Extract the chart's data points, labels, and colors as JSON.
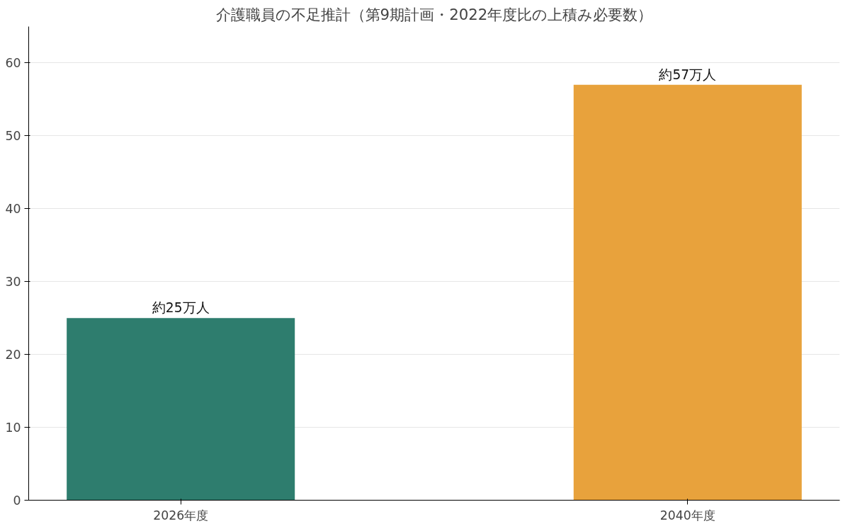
{
  "chart_data": {
    "type": "bar",
    "title": "介護職員の不足推計（第9期計画・2022年度比の上積み必要数）",
    "categories": [
      "2026年度",
      "2040年度"
    ],
    "values": [
      25,
      57
    ],
    "colors": [
      "#2e7d6e",
      "#e8a23c"
    ],
    "value_labels": [
      "約25万人",
      "約57万人"
    ],
    "ylim": [
      0,
      65
    ],
    "yticks": [
      0,
      10,
      20,
      30,
      40,
      50,
      60
    ],
    "grid": "y"
  }
}
